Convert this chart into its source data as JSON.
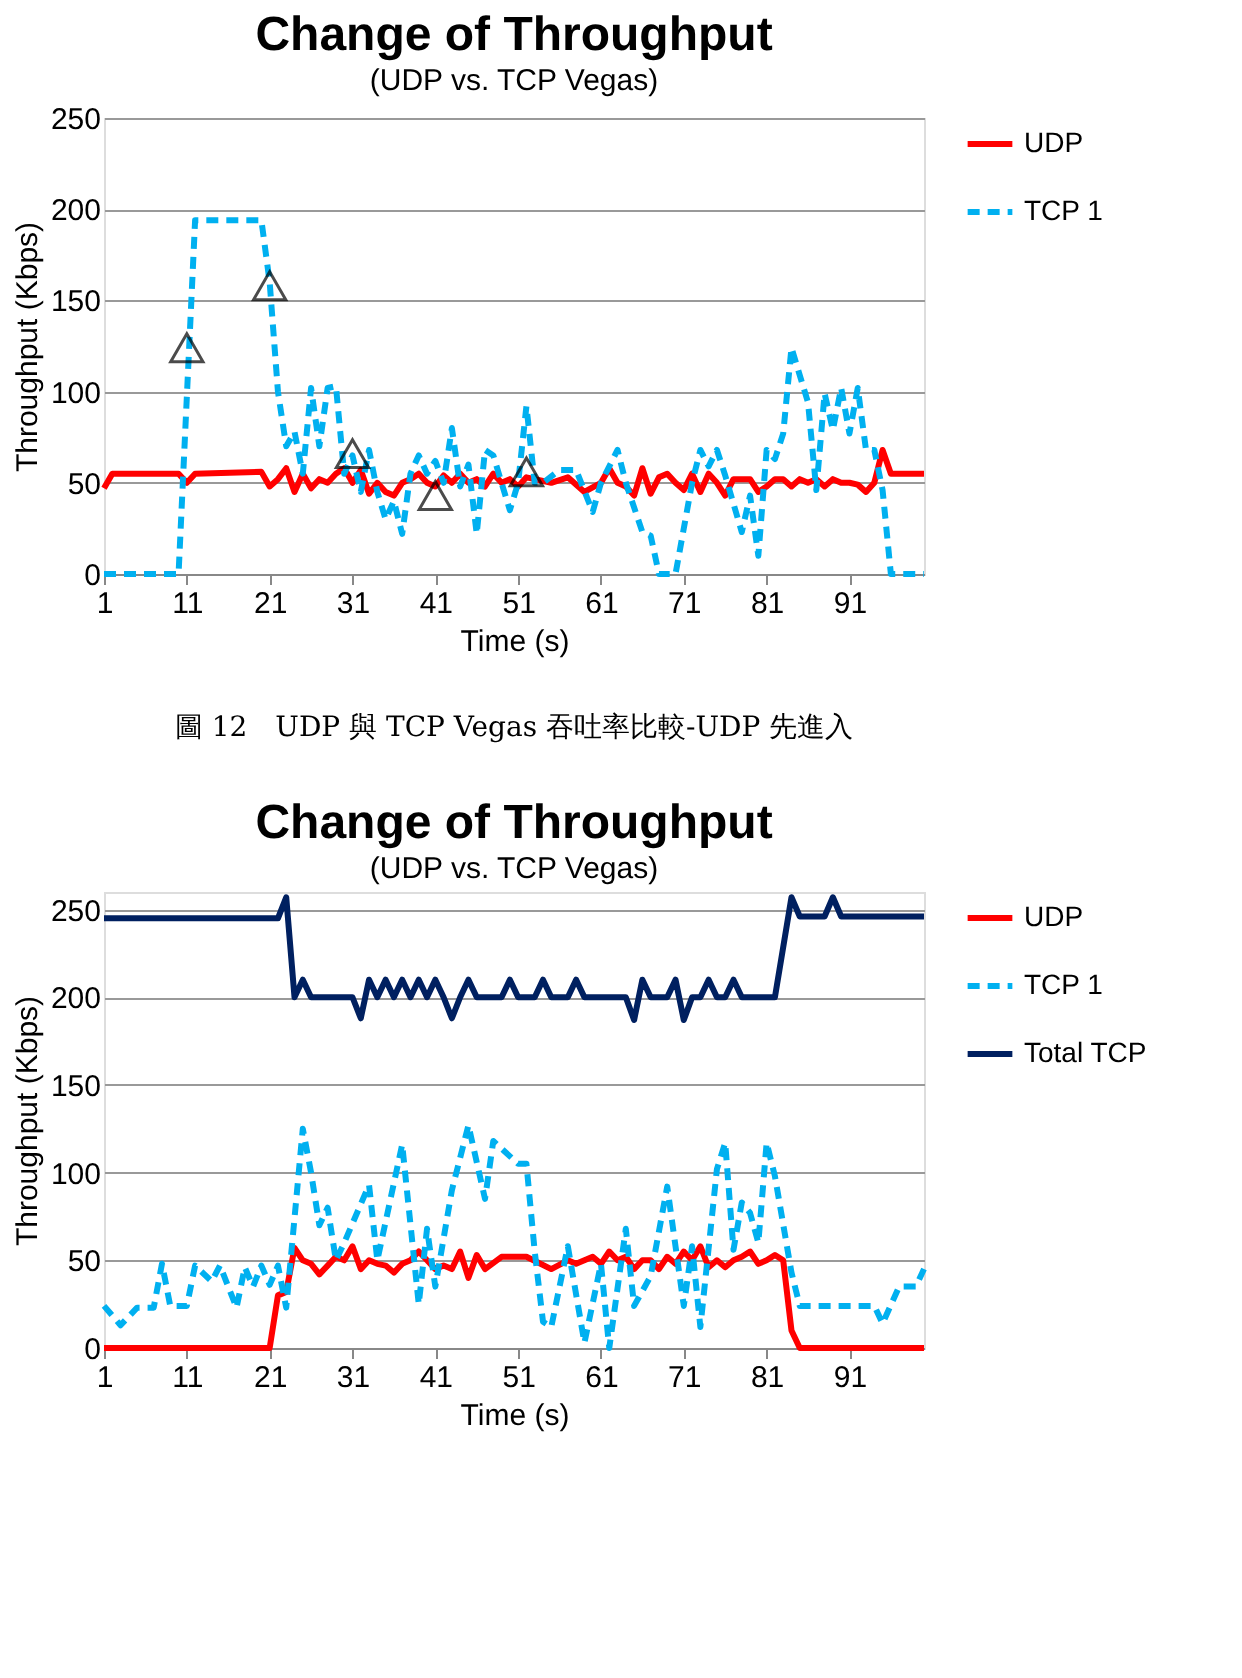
{
  "chart_data": [
    {
      "type": "line",
      "title": "Change of Throughput",
      "subtitle": "(UDP vs. TCP Vegas)",
      "xlabel": "Time (s)",
      "ylabel": "Throughput (Kbps)",
      "xlim": [
        1,
        100
      ],
      "xticks": [
        1,
        11,
        21,
        31,
        41,
        51,
        61,
        71,
        81,
        91
      ],
      "ylim": [
        0,
        250
      ],
      "yticks": [
        0,
        50,
        100,
        150,
        200,
        250
      ],
      "grid": "y",
      "legend": "right",
      "annotations": [
        "圖 12　UDP 與 TCP Vegas 吞吐率比較-UDP 先進入"
      ],
      "series": [
        {
          "name": "UDP",
          "color": "#ff0000",
          "line_style": "solid",
          "x": [
            1,
            2,
            10,
            11,
            12,
            20,
            21,
            22,
            23,
            24,
            25,
            26,
            27,
            28,
            29,
            30,
            31,
            32,
            33,
            34,
            35,
            36,
            37,
            38,
            39,
            40,
            41,
            42,
            43,
            44,
            45,
            46,
            47,
            48,
            49,
            50,
            51,
            52,
            53,
            55,
            57,
            59,
            61,
            62,
            63,
            64,
            65,
            66,
            67,
            68,
            69,
            70,
            71,
            72,
            73,
            74,
            75,
            76,
            77,
            78,
            79,
            80,
            81,
            82,
            83,
            84,
            85,
            86,
            87,
            88,
            89,
            90,
            91,
            92,
            93,
            94,
            95,
            96,
            100
          ],
          "values": [
            47,
            55,
            55,
            50,
            55,
            56,
            48,
            52,
            58,
            45,
            55,
            47,
            52,
            50,
            55,
            58,
            50,
            57,
            44,
            50,
            45,
            43,
            50,
            52,
            55,
            50,
            48,
            54,
            50,
            55,
            50,
            52,
            48,
            55,
            50,
            52,
            48,
            53,
            52,
            50,
            53,
            45,
            50,
            58,
            50,
            48,
            43,
            58,
            44,
            53,
            55,
            50,
            46,
            55,
            45,
            55,
            50,
            43,
            52,
            52,
            52,
            45,
            48,
            52,
            52,
            48,
            52,
            50,
            52,
            48,
            52,
            50,
            50,
            49,
            45,
            50,
            68,
            55,
            55
          ]
        },
        {
          "name": "TCP 1",
          "color": "#00b0f0",
          "line_style": "dashed",
          "x": [
            1,
            10,
            12,
            20,
            21,
            22,
            23,
            24,
            25,
            26,
            27,
            28,
            29,
            30,
            31,
            32,
            33,
            34,
            35,
            36,
            37,
            38,
            39,
            40,
            41,
            42,
            43,
            44,
            45,
            46,
            47,
            48,
            49,
            50,
            51,
            52,
            53,
            54,
            56,
            58,
            60,
            61,
            63,
            64,
            66,
            67,
            68,
            70,
            72,
            73,
            74,
            75,
            76,
            78,
            79,
            80,
            81,
            82,
            83,
            84,
            86,
            87,
            88,
            89,
            90,
            91,
            92,
            93,
            94,
            95,
            96,
            100
          ],
          "values": [
            0,
            0,
            194,
            194,
            160,
            100,
            70,
            78,
            55,
            102,
            70,
            102,
            103,
            55,
            65,
            45,
            68,
            45,
            30,
            40,
            22,
            55,
            65,
            55,
            62,
            50,
            80,
            48,
            60,
            22,
            68,
            65,
            50,
            35,
            50,
            92,
            50,
            50,
            57,
            57,
            34,
            50,
            68,
            50,
            23,
            21,
            0,
            0,
            50,
            68,
            59,
            68,
            54,
            23,
            43,
            10,
            68,
            63,
            77,
            124,
            94,
            46,
            99,
            79,
            102,
            77,
            102,
            68,
            68,
            46,
            0,
            0
          ]
        },
        {
          "type": "scatter",
          "color": "#000000",
          "marker": "triangle",
          "x": [
            11,
            21,
            31,
            41,
            52
          ],
          "values": [
            124,
            158,
            66,
            43,
            56
          ]
        }
      ]
    },
    {
      "type": "line",
      "title": "Change of Throughput",
      "subtitle": "(UDP vs. TCP Vegas)",
      "xlabel": "Time (s)",
      "ylabel": "Throughput (Kbps)",
      "xlim": [
        1,
        100
      ],
      "xticks": [
        1,
        11,
        21,
        31,
        41,
        51,
        61,
        71,
        81,
        91
      ],
      "ylim": [
        0,
        260
      ],
      "yticks": [
        0,
        50,
        100,
        150,
        200,
        250
      ],
      "grid": "y",
      "legend": "right",
      "series": [
        {
          "name": "UDP",
          "color": "#ff0000",
          "line_style": "solid",
          "x": [
            1,
            21,
            22,
            23,
            24,
            25,
            26,
            27,
            28,
            29,
            30,
            31,
            32,
            33,
            34,
            35,
            36,
            37,
            38,
            39,
            40,
            41,
            42,
            43,
            44,
            45,
            46,
            47,
            49,
            52,
            55,
            57,
            58,
            60,
            61,
            62,
            63,
            64,
            65,
            66,
            67,
            68,
            69,
            70,
            71,
            72,
            73,
            74,
            75,
            76,
            77,
            78,
            79,
            80,
            81,
            82,
            83,
            84,
            85,
            100
          ],
          "values": [
            0,
            0,
            30,
            32,
            57,
            50,
            48,
            42,
            47,
            52,
            50,
            58,
            45,
            50,
            48,
            47,
            43,
            48,
            50,
            55,
            50,
            45,
            47,
            45,
            55,
            40,
            53,
            45,
            52,
            52,
            45,
            50,
            48,
            52,
            48,
            55,
            50,
            52,
            45,
            50,
            50,
            45,
            52,
            48,
            55,
            50,
            58,
            46,
            50,
            46,
            50,
            52,
            55,
            48,
            50,
            53,
            50,
            10,
            0,
            0
          ]
        },
        {
          "name": "TCP 1",
          "color": "#00b0f0",
          "line_style": "dashed",
          "x": [
            1,
            3,
            5,
            7,
            8,
            9,
            11,
            12,
            14,
            15,
            17,
            18,
            19,
            20,
            21,
            22,
            23,
            25,
            26,
            27,
            28,
            29,
            30,
            33,
            34,
            37,
            39,
            40,
            41,
            43,
            45,
            47,
            48,
            51,
            52,
            53,
            54,
            55,
            57,
            59,
            61,
            62,
            64,
            65,
            67,
            69,
            71,
            72,
            73,
            75,
            76,
            77,
            78,
            79,
            80,
            81,
            82,
            84,
            85,
            94,
            95,
            97,
            99,
            100
          ],
          "values": [
            24,
            13,
            23,
            23,
            48,
            24,
            24,
            47,
            38,
            47,
            23,
            46,
            35,
            47,
            36,
            47,
            23,
            125,
            100,
            70,
            80,
            50,
            60,
            93,
            50,
            116,
            25,
            68,
            35,
            90,
            127,
            85,
            118,
            105,
            105,
            55,
            15,
            12,
            58,
            3,
            48,
            0,
            68,
            24,
            41,
            92,
            24,
            58,
            12,
            102,
            117,
            56,
            83,
            77,
            60,
            117,
            98,
            43,
            24,
            24,
            14,
            35,
            35,
            45
          ]
        },
        {
          "name": "Total TCP",
          "color": "#002060",
          "line_style": "solid",
          "x": [
            1,
            22,
            23,
            24,
            25,
            26,
            31,
            32,
            33,
            34,
            35,
            36,
            37,
            38,
            39,
            40,
            41,
            42,
            43,
            44,
            45,
            46,
            49,
            50,
            51,
            53,
            54,
            55,
            57,
            58,
            59,
            64,
            65,
            66,
            67,
            69,
            70,
            71,
            72,
            73,
            74,
            75,
            76,
            77,
            78,
            82,
            84,
            85,
            88,
            89,
            90,
            100
          ],
          "values": [
            245,
            245,
            257,
            200,
            210,
            200,
            200,
            188,
            210,
            200,
            210,
            200,
            210,
            200,
            210,
            200,
            210,
            200,
            188,
            200,
            210,
            200,
            200,
            210,
            200,
            200,
            210,
            200,
            200,
            210,
            200,
            200,
            187,
            210,
            200,
            200,
            210,
            187,
            200,
            200,
            210,
            200,
            200,
            210,
            200,
            200,
            257,
            246,
            246,
            257,
            246,
            246
          ]
        }
      ]
    }
  ]
}
